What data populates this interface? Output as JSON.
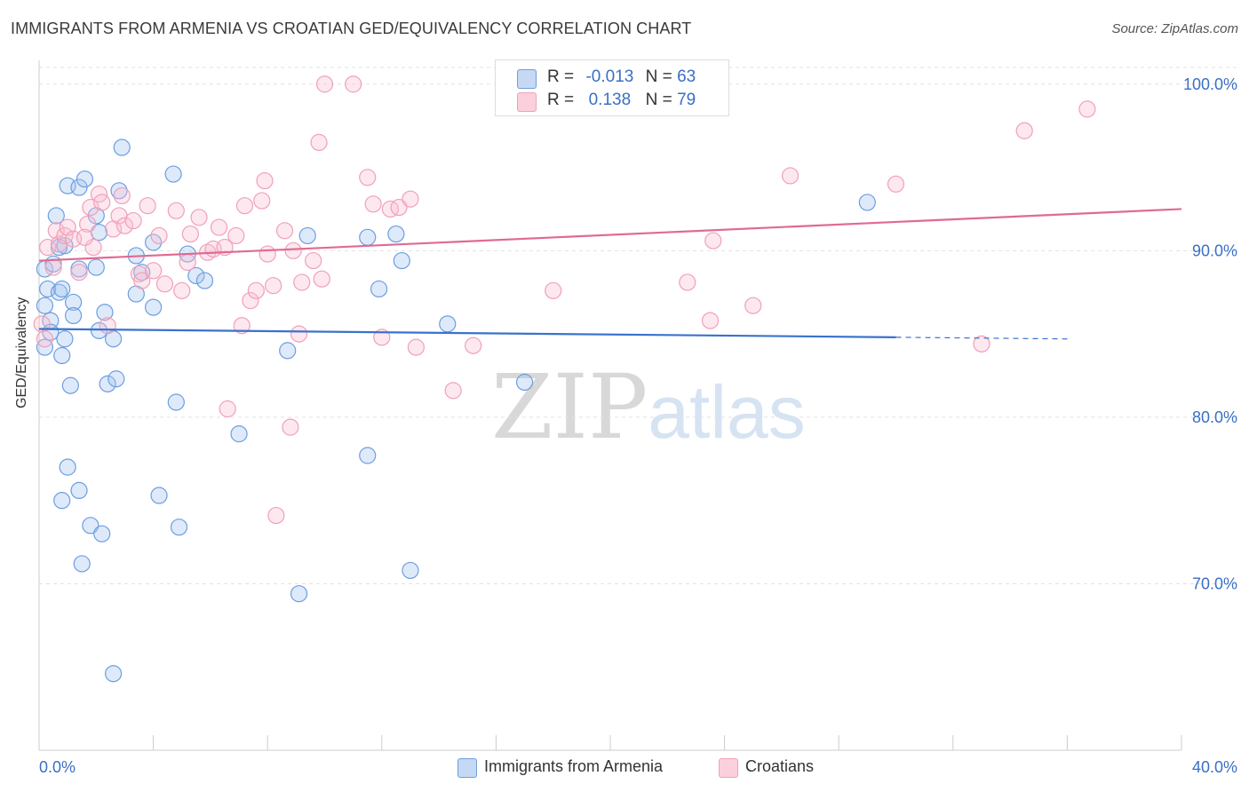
{
  "title": "IMMIGRANTS FROM ARMENIA VS CROATIAN GED/EQUIVALENCY CORRELATION CHART",
  "source": "Source: ZipAtlas.com",
  "watermark": {
    "zip": "ZIP",
    "atlas": "atlas"
  },
  "legend": {
    "rows": [
      {
        "r_label": "R =",
        "r_value": "-0.013",
        "n_label": "N =",
        "n_value": "63"
      },
      {
        "r_label": "R =",
        "r_value": "0.138",
        "n_label": "N =",
        "n_value": "79"
      }
    ]
  },
  "bottom_legend": [
    "Immigrants from Armenia",
    "Croatians"
  ],
  "chart_data": {
    "type": "scatter",
    "title": "IMMIGRANTS FROM ARMENIA VS CROATIAN GED/EQUIVALENCY CORRELATION CHART",
    "xlabel": "",
    "ylabel": "GED/Equivalency",
    "xlim": [
      0,
      40
    ],
    "ylim": [
      60,
      101
    ],
    "x_tick_labels": [
      "0.0%",
      "40.0%"
    ],
    "y_tick_labels": [
      "70.0%",
      "80.0%",
      "90.0%",
      "100.0%"
    ],
    "y_ticks": [
      70,
      80,
      90,
      100
    ],
    "grid": true,
    "legend_placement": "top-center",
    "series": [
      {
        "name": "Immigrants from Armenia",
        "color": "#6c9ee0",
        "trend_color": "#3a72cc",
        "trend": {
          "x0": 0,
          "y0": 85.3,
          "x1": 30,
          "y1": 84.8,
          "dashed_to_x": 36,
          "dashed_to_y": 84.7
        },
        "points": [
          [
            0.2,
            88.9
          ],
          [
            0.3,
            87.7
          ],
          [
            0.2,
            86.7
          ],
          [
            0.4,
            85.8
          ],
          [
            0.2,
            84.2
          ],
          [
            0.4,
            85.1
          ],
          [
            0.5,
            89.2
          ],
          [
            0.6,
            92.1
          ],
          [
            0.7,
            90.2
          ],
          [
            0.7,
            87.5
          ],
          [
            0.8,
            87.7
          ],
          [
            0.9,
            84.7
          ],
          [
            0.9,
            90.3
          ],
          [
            1.0,
            93.9
          ],
          [
            1.0,
            77.0
          ],
          [
            1.1,
            81.9
          ],
          [
            1.2,
            86.9
          ],
          [
            1.2,
            86.1
          ],
          [
            1.4,
            93.8
          ],
          [
            1.4,
            88.9
          ],
          [
            1.4,
            75.6
          ],
          [
            1.5,
            71.2
          ],
          [
            1.6,
            94.3
          ],
          [
            0.8,
            75.0
          ],
          [
            1.8,
            73.5
          ],
          [
            2.0,
            89.0
          ],
          [
            2.0,
            92.1
          ],
          [
            2.1,
            91.1
          ],
          [
            2.2,
            73.0
          ],
          [
            2.3,
            86.3
          ],
          [
            2.4,
            82.0
          ],
          [
            2.6,
            84.7
          ],
          [
            2.7,
            82.3
          ],
          [
            2.8,
            93.6
          ],
          [
            2.9,
            96.2
          ],
          [
            2.6,
            64.6
          ],
          [
            3.4,
            89.7
          ],
          [
            3.4,
            87.4
          ],
          [
            3.6,
            88.7
          ],
          [
            4.0,
            86.6
          ],
          [
            4.0,
            90.5
          ],
          [
            4.2,
            75.3
          ],
          [
            4.7,
            94.6
          ],
          [
            4.8,
            80.9
          ],
          [
            4.9,
            73.4
          ],
          [
            5.2,
            89.8
          ],
          [
            5.5,
            88.5
          ],
          [
            5.8,
            88.2
          ],
          [
            7.0,
            79.0
          ],
          [
            8.7,
            84.0
          ],
          [
            9.1,
            69.4
          ],
          [
            9.4,
            90.9
          ],
          [
            11.5,
            77.7
          ],
          [
            11.5,
            90.8
          ],
          [
            11.9,
            87.7
          ],
          [
            12.5,
            91.0
          ],
          [
            12.7,
            89.4
          ],
          [
            13.0,
            70.8
          ],
          [
            14.3,
            85.6
          ],
          [
            17.0,
            82.1
          ],
          [
            29.0,
            92.9
          ],
          [
            0.8,
            83.7
          ],
          [
            2.1,
            85.2
          ]
        ]
      },
      {
        "name": "Croatians",
        "color": "#f0a0b8",
        "trend_color": "#e06a92",
        "trend": {
          "x0": 0,
          "y0": 89.4,
          "x1": 40,
          "y1": 92.5
        },
        "points": [
          [
            0.1,
            85.6
          ],
          [
            0.2,
            84.7
          ],
          [
            0.3,
            90.2
          ],
          [
            0.5,
            89.0
          ],
          [
            0.6,
            91.2
          ],
          [
            0.7,
            90.4
          ],
          [
            0.9,
            90.9
          ],
          [
            1.0,
            91.4
          ],
          [
            1.2,
            90.7
          ],
          [
            1.4,
            88.7
          ],
          [
            1.7,
            91.6
          ],
          [
            1.8,
            92.6
          ],
          [
            1.9,
            90.2
          ],
          [
            2.1,
            93.4
          ],
          [
            2.2,
            92.9
          ],
          [
            2.4,
            85.5
          ],
          [
            2.6,
            91.3
          ],
          [
            2.8,
            92.1
          ],
          [
            3.0,
            91.5
          ],
          [
            3.3,
            91.8
          ],
          [
            3.5,
            88.6
          ],
          [
            3.6,
            88.2
          ],
          [
            3.8,
            92.7
          ],
          [
            4.0,
            88.8
          ],
          [
            4.2,
            90.9
          ],
          [
            4.4,
            88.0
          ],
          [
            4.8,
            92.4
          ],
          [
            5.0,
            87.6
          ],
          [
            5.2,
            89.3
          ],
          [
            5.3,
            91.0
          ],
          [
            5.6,
            92.0
          ],
          [
            5.9,
            89.9
          ],
          [
            6.1,
            90.1
          ],
          [
            6.3,
            91.4
          ],
          [
            6.5,
            90.2
          ],
          [
            6.6,
            80.5
          ],
          [
            6.9,
            90.9
          ],
          [
            7.1,
            85.5
          ],
          [
            7.2,
            92.7
          ],
          [
            7.4,
            87.0
          ],
          [
            7.6,
            87.6
          ],
          [
            7.8,
            93.0
          ],
          [
            7.9,
            94.2
          ],
          [
            8.0,
            89.8
          ],
          [
            8.2,
            87.9
          ],
          [
            8.3,
            74.1
          ],
          [
            8.6,
            91.2
          ],
          [
            8.8,
            79.4
          ],
          [
            8.9,
            90.0
          ],
          [
            9.1,
            85.0
          ],
          [
            9.2,
            88.1
          ],
          [
            9.6,
            89.4
          ],
          [
            9.8,
            96.5
          ],
          [
            9.9,
            88.3
          ],
          [
            10.0,
            100.0
          ],
          [
            11.0,
            100.0
          ],
          [
            11.5,
            94.4
          ],
          [
            11.7,
            92.8
          ],
          [
            12.0,
            84.8
          ],
          [
            12.3,
            92.5
          ],
          [
            12.6,
            92.6
          ],
          [
            13.0,
            93.1
          ],
          [
            13.2,
            84.2
          ],
          [
            14.5,
            81.6
          ],
          [
            15.2,
            84.3
          ],
          [
            17.5,
            100.0
          ],
          [
            18.0,
            87.6
          ],
          [
            17.0,
            99.0
          ],
          [
            22.7,
            88.1
          ],
          [
            23.5,
            85.8
          ],
          [
            23.6,
            90.6
          ],
          [
            25.0,
            86.7
          ],
          [
            26.3,
            94.5
          ],
          [
            30.0,
            94.0
          ],
          [
            33.0,
            84.4
          ],
          [
            34.5,
            97.2
          ],
          [
            36.7,
            98.5
          ],
          [
            2.9,
            93.3
          ],
          [
            1.6,
            90.8
          ]
        ]
      }
    ]
  }
}
